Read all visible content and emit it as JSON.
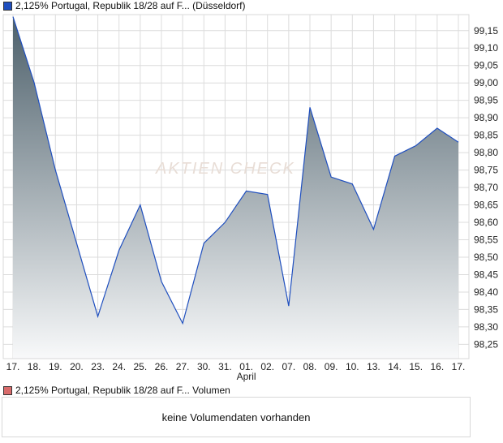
{
  "legend": {
    "price_label": "2,125% Portugal, Republik 18/28 auf F... (Düsseldorf)",
    "price_color": "#1f4fbf",
    "volume_label": "2,125% Portugal, Republik 18/28 auf F... Volumen",
    "volume_color": "#d96b6b"
  },
  "volume": {
    "empty_text": "keine Volumendaten vorhanden"
  },
  "watermark": "AKTIEN CHECK",
  "chart_data": {
    "type": "area",
    "title": "2,125% Portugal, Republik 18/28 auf F... (Düsseldorf)",
    "categories": [
      "17.",
      "18.",
      "19.",
      "20.",
      "23.",
      "24.",
      "25.",
      "26.",
      "27.",
      "30.",
      "31.",
      "01.",
      "02.",
      "07.",
      "08.",
      "09.",
      "10.",
      "13.",
      "14.",
      "15.",
      "16.",
      "17."
    ],
    "month_label": {
      "text": "April",
      "at_index": 11
    },
    "values": [
      99.19,
      99.0,
      98.75,
      98.54,
      98.33,
      98.52,
      98.65,
      98.43,
      98.31,
      98.54,
      98.6,
      98.69,
      98.68,
      98.36,
      98.93,
      98.73,
      98.71,
      98.58,
      98.79,
      98.82,
      98.87,
      98.83
    ],
    "yticks": [
      "99,15",
      "99,10",
      "99,05",
      "99,00",
      "98,95",
      "98,90",
      "98,85",
      "98,80",
      "98,75",
      "98,70",
      "98,65",
      "98,60",
      "98,55",
      "98,50",
      "98,45",
      "98,40",
      "98,35",
      "98,30",
      "98,25"
    ],
    "ytick_values": [
      99.15,
      99.1,
      99.05,
      99.0,
      98.95,
      98.9,
      98.85,
      98.8,
      98.75,
      98.7,
      98.65,
      98.6,
      98.55,
      98.5,
      98.45,
      98.4,
      98.35,
      98.3,
      98.25
    ],
    "ylim": [
      98.209,
      99.196
    ],
    "grid": true,
    "line_color": "#1f4fbf",
    "fill_top": "#4d606b",
    "fill_bottom": "#f8f9fa"
  }
}
